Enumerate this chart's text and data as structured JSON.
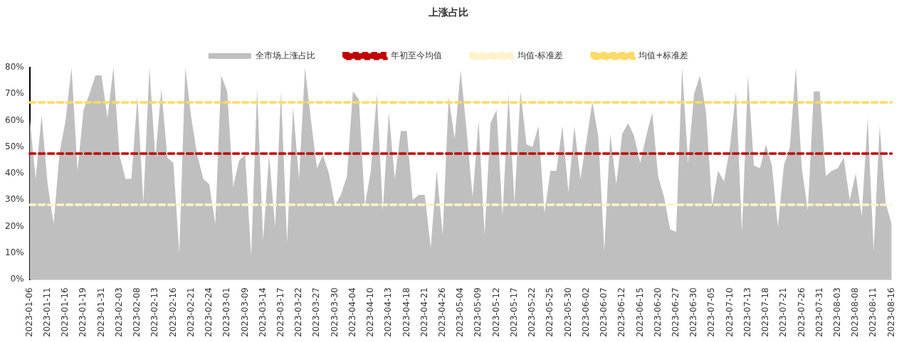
{
  "chart_data": {
    "type": "area",
    "title": "上涨占比",
    "legend": "top",
    "categories": [
      "2023-01-06",
      null,
      null,
      "2023-01-11",
      null,
      null,
      "2023-01-16",
      null,
      null,
      "2023-01-19",
      null,
      null,
      "2023-01-31",
      null,
      null,
      "2023-02-03",
      null,
      null,
      "2023-02-08",
      null,
      null,
      "2023-02-13",
      null,
      null,
      "2023-02-16",
      null,
      null,
      "2023-02-21",
      null,
      null,
      "2023-02-24",
      null,
      null,
      "2023-03-01",
      null,
      null,
      "2023-03-09",
      null,
      null,
      "2023-03-14",
      null,
      null,
      "2023-03-17",
      null,
      null,
      "2023-03-22",
      null,
      null,
      "2023-03-27",
      null,
      null,
      "2023-03-30",
      null,
      null,
      "2023-04-04",
      null,
      null,
      "2023-04-10",
      null,
      null,
      "2023-04-13",
      null,
      null,
      "2023-04-18",
      null,
      null,
      "2023-04-21",
      null,
      null,
      "2023-04-26",
      null,
      null,
      "2023-05-04",
      null,
      null,
      "2023-05-09",
      null,
      null,
      "2023-05-12",
      null,
      null,
      "2023-05-17",
      null,
      null,
      "2023-05-22",
      null,
      null,
      "2023-05-25",
      null,
      null,
      "2023-05-30",
      null,
      null,
      "2023-06-02",
      null,
      null,
      "2023-06-07",
      null,
      null,
      "2023-06-12",
      null,
      null,
      "2023-06-15",
      null,
      null,
      "2023-06-20",
      null,
      null,
      "2023-06-27",
      null,
      null,
      "2023-06-30",
      null,
      null,
      "2023-07-05",
      null,
      null,
      "2023-07-10",
      null,
      null,
      "2023-07-13",
      null,
      null,
      "2023-07-18",
      null,
      null,
      "2023-07-21",
      null,
      null,
      "2023-07-26",
      null,
      null,
      "2023-07-31",
      null,
      null,
      "2023-08-03",
      null,
      null,
      "2023-08-08",
      null,
      null,
      "2023-08-11",
      null,
      null,
      "2023-08-16"
    ],
    "series": [
      {
        "name": "全市场上涨占比",
        "color": "#bfbfbf",
        "values": [
          61,
          38,
          62,
          36,
          21,
          48,
          60,
          80,
          41,
          64,
          70,
          77,
          77,
          61,
          80,
          47,
          38,
          38,
          69,
          29,
          80,
          46,
          72,
          46,
          44,
          10,
          80,
          61,
          47,
          38,
          36,
          21,
          77,
          71,
          35,
          45,
          47,
          9,
          72,
          15,
          47,
          20,
          71,
          14,
          65,
          38,
          80,
          60,
          42,
          47,
          40,
          28,
          32,
          39,
          71,
          68,
          28,
          41,
          70,
          26,
          63,
          38,
          56,
          56,
          30,
          32,
          32,
          12,
          41,
          17,
          69,
          53,
          79,
          56,
          31,
          60,
          17,
          59,
          64,
          24,
          70,
          29,
          71,
          51,
          50,
          58,
          25,
          41,
          41,
          58,
          33,
          58,
          38,
          52,
          67,
          54,
          11,
          55,
          36,
          55,
          59,
          54,
          44,
          54,
          63,
          39,
          31,
          19,
          18,
          80,
          44,
          70,
          77,
          63,
          28,
          41,
          37,
          50,
          71,
          18,
          77,
          43,
          42,
          51,
          43,
          20,
          43,
          50,
          80,
          42,
          26,
          71,
          71,
          39,
          41,
          42,
          46,
          30,
          40,
          24,
          61,
          11,
          58,
          29,
          21
        ]
      }
    ],
    "ref_lines": [
      {
        "axis": "y",
        "value": 47.5,
        "label": "年初至今均值",
        "color": "#c00000",
        "line_style": "dashed"
      },
      {
        "axis": "y",
        "value": 28.2,
        "label": "均值-标准差",
        "color": "#fff2cc",
        "line_style": "dashed"
      },
      {
        "axis": "y",
        "value": 66.8,
        "label": "均值+标准差",
        "color": "#ffd966",
        "line_style": "dashed"
      }
    ],
    "ylim": [
      0,
      80
    ],
    "yticks": [
      {
        "value": 0,
        "label": "0%"
      },
      {
        "value": 10,
        "label": "10%"
      },
      {
        "value": 20,
        "label": "20%"
      },
      {
        "value": 30,
        "label": "30%"
      },
      {
        "value": 40,
        "label": "40%"
      },
      {
        "value": 50,
        "label": "50%"
      },
      {
        "value": 60,
        "label": "60%"
      },
      {
        "value": 70,
        "label": "70%"
      },
      {
        "value": 80,
        "label": "80%"
      }
    ],
    "grid": false
  }
}
